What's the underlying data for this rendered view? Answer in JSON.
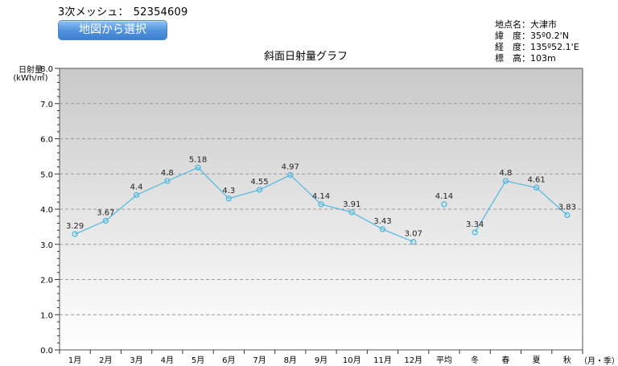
{
  "header": {
    "mesh_label": "3次メッシュ：",
    "mesh_code": "52354609",
    "select_button": "地図から選択"
  },
  "location_info": [
    {
      "label": "地点名：",
      "value": "大津市"
    },
    {
      "label": "緯　度：",
      "value": "35º0.2'N"
    },
    {
      "label": "経　度：",
      "value": "135º52.1'E"
    },
    {
      "label": "標　高：",
      "value": "103m"
    }
  ],
  "chart_data": {
    "type": "line",
    "title": "斜面日射量グラフ",
    "ylabel_line1": "日射量",
    "ylabel_line2": "(kWh/㎡)",
    "xlabel": "（月・季）",
    "ylim": [
      0,
      8.0
    ],
    "yticks": [
      "0.0",
      "1.0",
      "2.0",
      "3.0",
      "4.0",
      "5.0",
      "6.0",
      "7.0",
      "8.0"
    ],
    "grid": true,
    "categories": [
      "1月",
      "2月",
      "3月",
      "4月",
      "5月",
      "6月",
      "7月",
      "8月",
      "9月",
      "10月",
      "11月",
      "12月",
      "平均",
      "冬",
      "春",
      "夏",
      "秋"
    ],
    "series": [
      {
        "values": [
          3.29,
          3.67,
          4.4,
          4.8,
          5.18,
          4.3,
          4.55,
          4.97,
          4.14,
          3.91,
          3.43,
          3.07,
          4.14,
          3.34,
          4.8,
          4.61,
          3.83
        ],
        "labels": [
          "3.29",
          "3.67",
          "4.4",
          "4.8",
          "5.18",
          "4.3",
          "4.55",
          "4.97",
          "4.14",
          "3.91",
          "3.43",
          "3.07",
          "4.14",
          "3.34",
          "4.8",
          "4.61",
          "3.83"
        ],
        "segments": [
          [
            0,
            11
          ],
          [
            12,
            12
          ],
          [
            13,
            16
          ]
        ]
      }
    ],
    "colors": {
      "line": "#4db8e0",
      "plot_top": "#c9c9c9",
      "plot_bottom": "#ffffff",
      "grid": "#9a9a9a"
    }
  }
}
